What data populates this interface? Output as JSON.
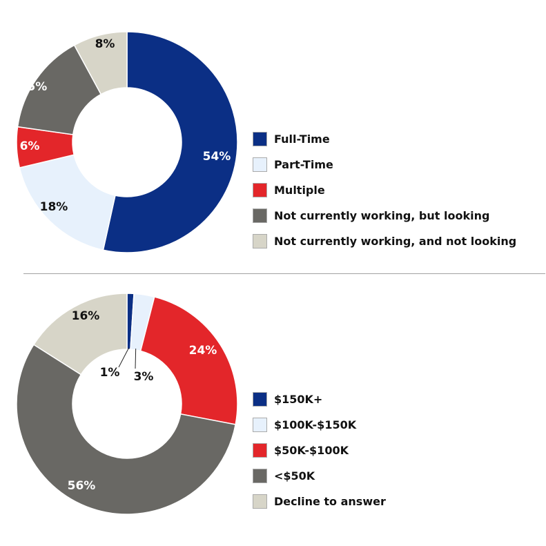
{
  "chart_data": [
    {
      "type": "donut",
      "categories": [
        "Full-Time",
        "Part-Time",
        "Multiple",
        "Not currently working, but looking",
        "Not currently working, and not looking"
      ],
      "values": [
        54,
        18,
        6,
        15,
        8
      ],
      "labels": [
        "54%",
        "18%",
        "6%",
        "15%",
        "8%"
      ],
      "colors": [
        "#0b2f85",
        "#e7f1fc",
        "#e3262a",
        "#696864",
        "#d7d5c8"
      ],
      "label_colors": [
        "#ffffff",
        "#111111",
        "#ffffff",
        "#ffffff",
        "#111111"
      ],
      "legend_position": "right"
    },
    {
      "type": "donut",
      "categories": [
        "$150K+",
        "$100K-$150K",
        "$50K-$100K",
        "<$50K",
        "Decline to answer"
      ],
      "values": [
        1,
        3,
        24,
        56,
        16
      ],
      "labels": [
        "1%",
        "3%",
        "24%",
        "56%",
        "16%"
      ],
      "colors": [
        "#0b2f85",
        "#e7f1fc",
        "#e3262a",
        "#696864",
        "#d7d5c8"
      ],
      "label_colors": [
        "#111111",
        "#111111",
        "#ffffff",
        "#ffffff",
        "#111111"
      ],
      "legend_position": "right"
    }
  ]
}
